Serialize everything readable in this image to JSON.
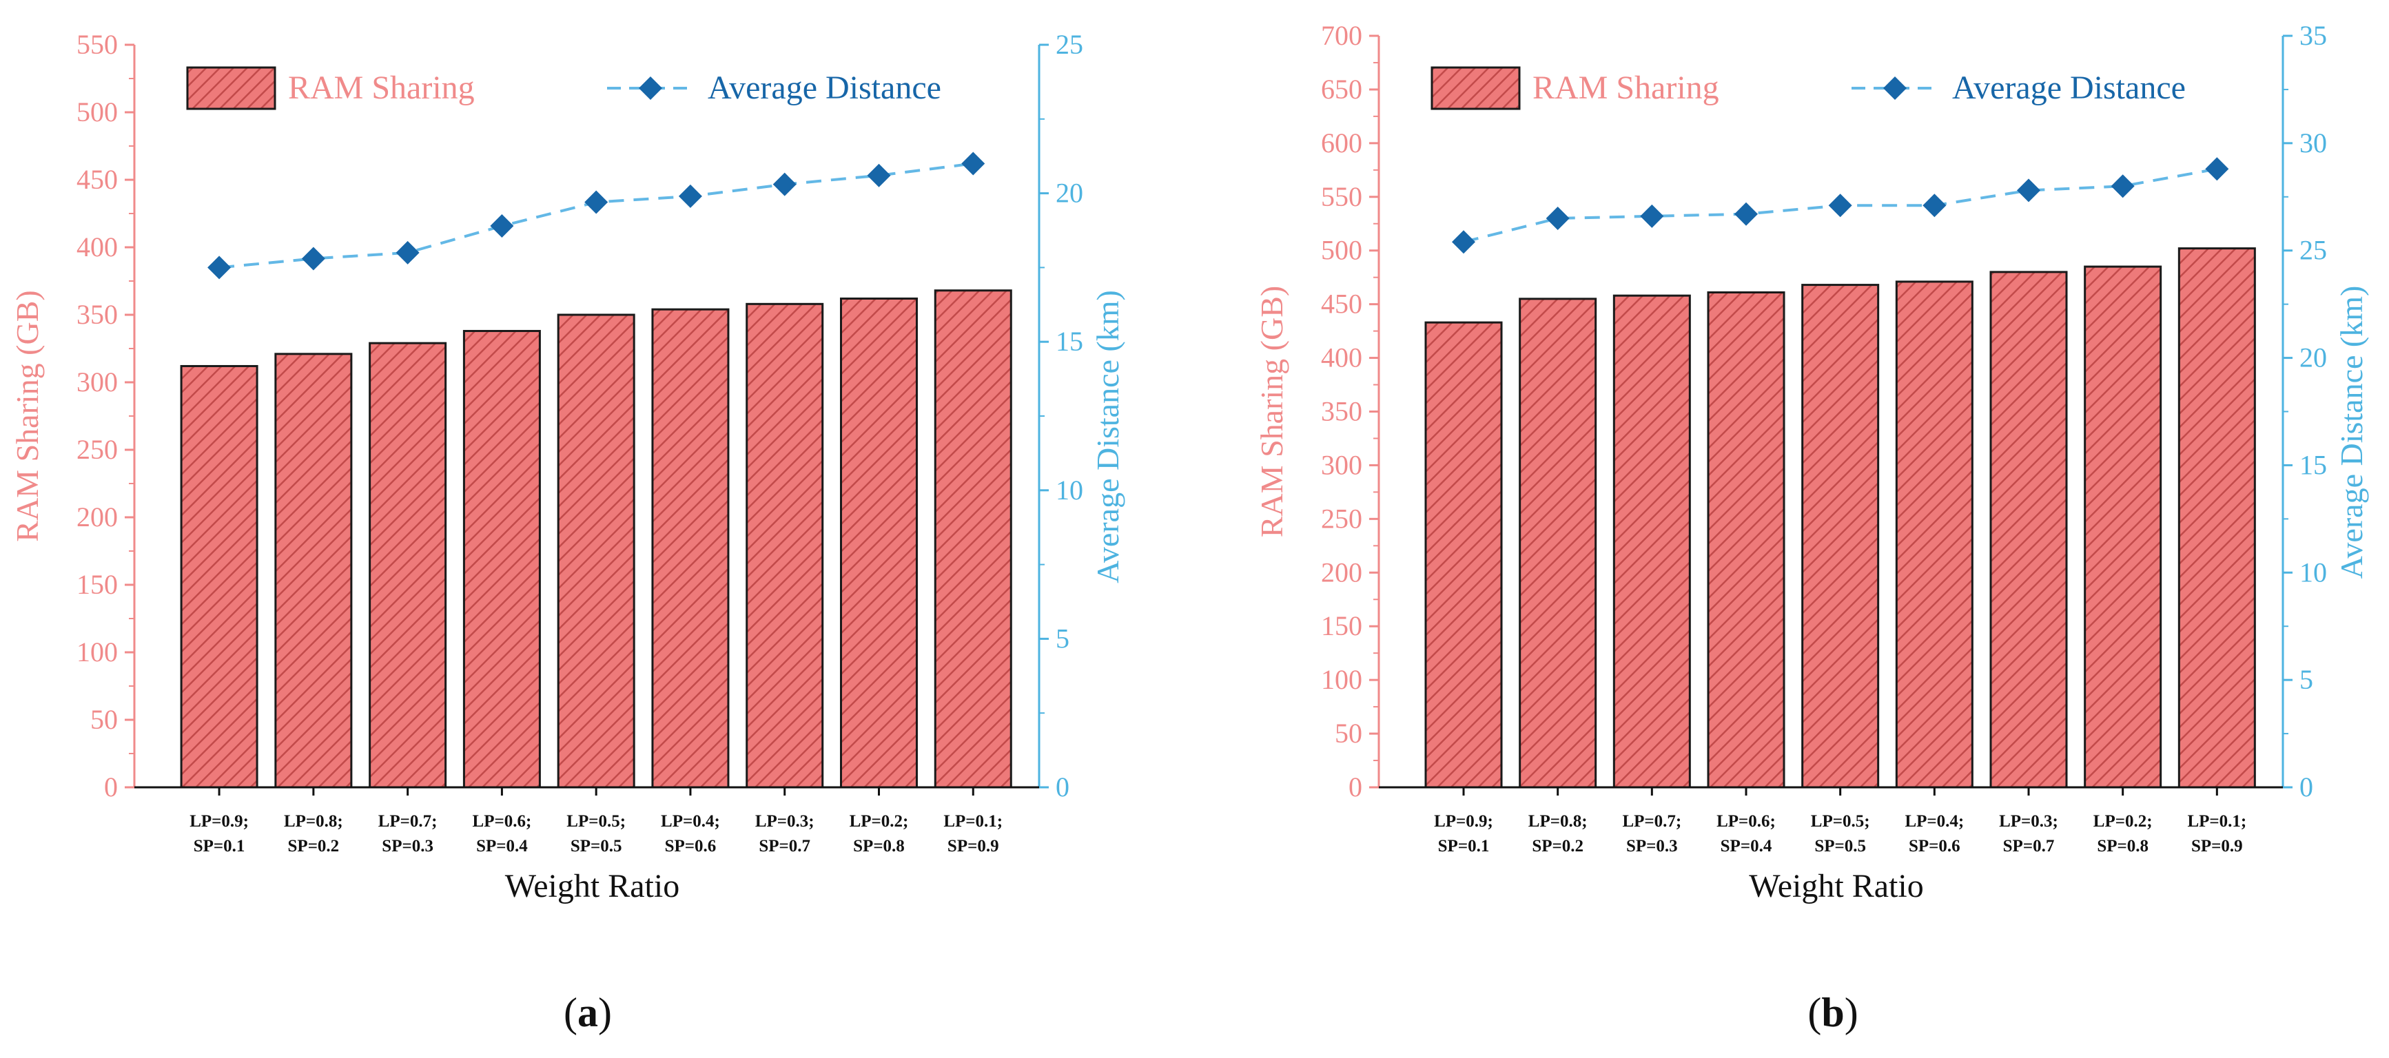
{
  "colors": {
    "bar_fill": "#ee7a7a",
    "bar_hatch": "#c24a4a",
    "bar_stroke": "#1a1a1a",
    "left_axis": "#f08a8a",
    "right_axis": "#4db3e0",
    "line": "#63b8e6",
    "marker": "#1766a8",
    "text_dark": "#111111"
  },
  "chart_data": [
    {
      "type": "bar+line",
      "panel_label": "(a)",
      "panel_letter": "a",
      "panel_open": "(",
      "panel_close": ")",
      "xlabel": "Weight Ratio",
      "ylabel_left": "RAM Sharing (GB)",
      "ylabel_right": "Average Distance (km)",
      "ylim_left": [
        0,
        550
      ],
      "yticks_left": [
        "0",
        "50",
        "100",
        "150",
        "200",
        "250",
        "300",
        "350",
        "400",
        "450",
        "500",
        "550"
      ],
      "ylim_right": [
        0,
        25
      ],
      "yticks_right": [
        "0",
        "5",
        "10",
        "15",
        "20",
        "25"
      ],
      "categories": [
        [
          "LP=0.9;",
          "SP=0.1"
        ],
        [
          "LP=0.8;",
          "SP=0.2"
        ],
        [
          "LP=0.7;",
          "SP=0.3"
        ],
        [
          "LP=0.6;",
          "SP=0.4"
        ],
        [
          "LP=0.5;",
          "SP=0.5"
        ],
        [
          "LP=0.4;",
          "SP=0.6"
        ],
        [
          "LP=0.3;",
          "SP=0.7"
        ],
        [
          "LP=0.2;",
          "SP=0.8"
        ],
        [
          "LP=0.1;",
          "SP=0.9"
        ]
      ],
      "legend": [
        "RAM Sharing",
        "Average Distance"
      ],
      "series": [
        {
          "name": "RAM Sharing",
          "type": "bar",
          "axis": "left",
          "values": [
            312,
            321,
            329,
            338,
            350,
            354,
            358,
            362,
            368
          ]
        },
        {
          "name": "Average Distance",
          "type": "line",
          "axis": "right",
          "values": [
            17.5,
            17.8,
            18.0,
            18.9,
            19.7,
            19.9,
            20.3,
            20.6,
            21.0
          ]
        }
      ]
    },
    {
      "type": "bar+line",
      "panel_label": "(b)",
      "panel_letter": "b",
      "panel_open": "(",
      "panel_close": ")",
      "xlabel": "Weight Ratio",
      "ylabel_left": "RAM Sharing (GB)",
      "ylabel_right": "Average Distance (km)",
      "ylim_left": [
        0,
        700
      ],
      "yticks_left": [
        "0",
        "50",
        "100",
        "150",
        "200",
        "250",
        "300",
        "350",
        "400",
        "450",
        "500",
        "550",
        "600",
        "650",
        "700"
      ],
      "ylim_right": [
        0,
        35
      ],
      "yticks_right": [
        "0",
        "5",
        "10",
        "15",
        "20",
        "25",
        "30",
        "35"
      ],
      "categories": [
        [
          "LP=0.9;",
          "SP=0.1"
        ],
        [
          "LP=0.8;",
          "SP=0.2"
        ],
        [
          "LP=0.7;",
          "SP=0.3"
        ],
        [
          "LP=0.6;",
          "SP=0.4"
        ],
        [
          "LP=0.5;",
          "SP=0.5"
        ],
        [
          "LP=0.4;",
          "SP=0.6"
        ],
        [
          "LP=0.3;",
          "SP=0.7"
        ],
        [
          "LP=0.2;",
          "SP=0.8"
        ],
        [
          "LP=0.1;",
          "SP=0.9"
        ]
      ],
      "legend": [
        "RAM Sharing",
        "Average Distance"
      ],
      "series": [
        {
          "name": "RAM Sharing",
          "type": "bar",
          "axis": "left",
          "values": [
            433,
            455,
            458,
            461,
            468,
            471,
            480,
            485,
            502
          ]
        },
        {
          "name": "Average Distance",
          "type": "line",
          "axis": "right",
          "values": [
            25.4,
            26.5,
            26.6,
            26.7,
            27.1,
            27.1,
            27.8,
            28.0,
            28.8
          ]
        }
      ]
    }
  ]
}
